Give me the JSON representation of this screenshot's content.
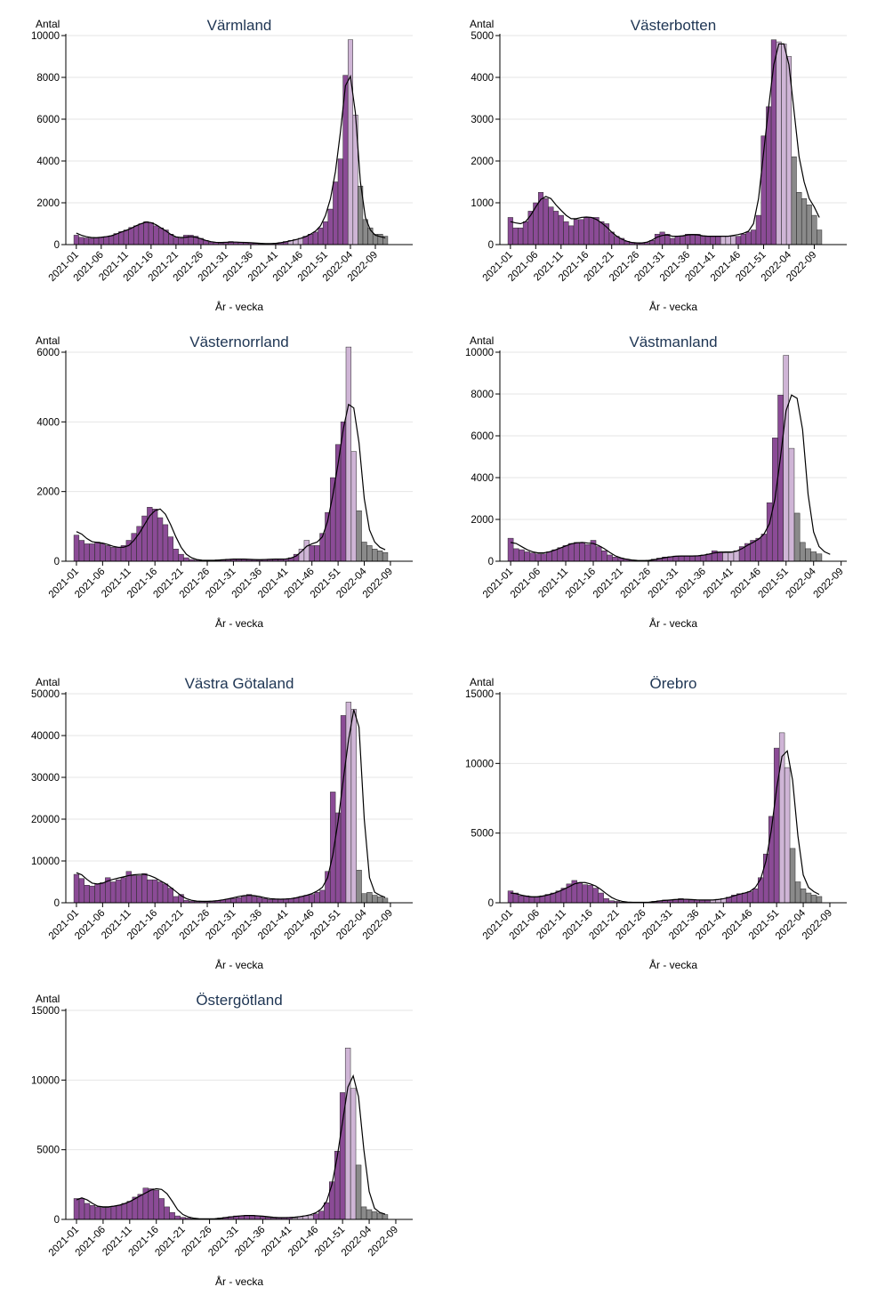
{
  "chart_data": [
    {
      "type": "bar",
      "title": "Värmland",
      "ylabel": "Antal",
      "xlabel": "År - vecka",
      "ylim": [
        0,
        10000
      ],
      "yticks": [
        0,
        2000,
        4000,
        6000,
        8000,
        10000
      ],
      "xticklabels": [
        "2021-01",
        "2021-06",
        "2021-11",
        "2021-16",
        "2021-21",
        "2021-26",
        "2021-31",
        "2021-36",
        "2021-41",
        "2021-46",
        "2021-51",
        "2022-04",
        "2022-09"
      ],
      "values": [
        450,
        350,
        320,
        300,
        320,
        350,
        380,
        420,
        530,
        620,
        700,
        820,
        900,
        1000,
        1100,
        1050,
        900,
        800,
        700,
        500,
        350,
        300,
        450,
        450,
        400,
        300,
        200,
        120,
        100,
        80,
        120,
        150,
        120,
        100,
        100,
        80,
        60,
        40,
        40,
        50,
        70,
        100,
        150,
        200,
        250,
        300,
        400,
        500,
        600,
        800,
        1100,
        1700,
        3000,
        4100,
        8100,
        9800,
        6200,
        2800,
        1200,
        800,
        500,
        500,
        400
      ],
      "curve": [
        550,
        450,
        380,
        340,
        330,
        350,
        380,
        420,
        500,
        600,
        680,
        780,
        900,
        1000,
        1080,
        1050,
        950,
        800,
        650,
        480,
        370,
        340,
        350,
        380,
        350,
        280,
        200,
        140,
        110,
        100,
        110,
        120,
        120,
        110,
        100,
        90,
        75,
        60,
        50,
        50,
        60,
        90,
        130,
        180,
        230,
        300,
        380,
        500,
        650,
        900,
        1400,
        2200,
        3500,
        5400,
        7600,
        8050,
        6300,
        3000,
        1300,
        700,
        450,
        380,
        320
      ],
      "grey_from": 57,
      "light_indices": [
        43,
        44,
        45,
        55,
        56
      ],
      "grid": true
    },
    {
      "type": "bar",
      "title": "Västerbotten",
      "ylabel": "Antal",
      "xlabel": "År - vecka",
      "ylim": [
        0,
        5000
      ],
      "yticks": [
        0,
        1000,
        2000,
        3000,
        4000,
        5000
      ],
      "xticklabels": [
        "2021-01",
        "2021-06",
        "2021-11",
        "2021-16",
        "2021-21",
        "2021-26",
        "2021-31",
        "2021-36",
        "2021-41",
        "2021-46",
        "2021-51",
        "2022-04",
        "2022-09"
      ],
      "values": [
        650,
        400,
        400,
        550,
        800,
        1000,
        1250,
        1100,
        900,
        800,
        700,
        550,
        450,
        600,
        600,
        650,
        650,
        650,
        550,
        500,
        300,
        200,
        150,
        80,
        50,
        40,
        40,
        50,
        100,
        250,
        300,
        250,
        150,
        200,
        200,
        250,
        250,
        250,
        200,
        200,
        200,
        200,
        200,
        200,
        200,
        200,
        250,
        300,
        350,
        700,
        2600,
        3300,
        4900,
        4850,
        4800,
        4500,
        2100,
        1250,
        1100,
        950,
        700,
        350
      ],
      "curve": [
        550,
        520,
        500,
        550,
        700,
        900,
        1080,
        1150,
        1100,
        950,
        820,
        700,
        620,
        620,
        650,
        660,
        650,
        600,
        520,
        420,
        300,
        200,
        130,
        80,
        50,
        40,
        40,
        60,
        110,
        180,
        220,
        230,
        200,
        200,
        210,
        230,
        240,
        230,
        210,
        200,
        200,
        200,
        200,
        200,
        220,
        240,
        270,
        320,
        500,
        1100,
        2200,
        3300,
        4300,
        4800,
        4800,
        4300,
        3200,
        2100,
        1500,
        1100,
        900,
        650
      ],
      "grey_from": 56,
      "light_indices": [
        42,
        43,
        44,
        53,
        54,
        55
      ],
      "grid": true
    },
    {
      "type": "bar",
      "title": "Västernorrland",
      "ylabel": "Antal",
      "xlabel": "År - vecka",
      "ylim": [
        0,
        6000
      ],
      "yticks": [
        0,
        2000,
        4000,
        6000
      ],
      "xticklabels": [
        "2021-01",
        "2021-06",
        "2021-11",
        "2021-16",
        "2021-21",
        "2021-26",
        "2021-31",
        "2021-36",
        "2021-41",
        "2021-46",
        "2021-51",
        "2022-04",
        "2022-09"
      ],
      "values": [
        750,
        600,
        500,
        500,
        550,
        500,
        450,
        400,
        400,
        450,
        600,
        800,
        1000,
        1300,
        1550,
        1500,
        1250,
        1050,
        700,
        350,
        200,
        100,
        50,
        30,
        20,
        20,
        30,
        40,
        50,
        60,
        60,
        60,
        60,
        50,
        40,
        40,
        50,
        60,
        60,
        60,
        60,
        100,
        200,
        350,
        600,
        450,
        450,
        800,
        1400,
        2400,
        3350,
        4000,
        6150,
        3150,
        1450,
        550,
        450,
        350,
        300,
        250
      ],
      "curve": [
        850,
        780,
        650,
        560,
        540,
        520,
        480,
        430,
        400,
        400,
        450,
        600,
        800,
        1050,
        1300,
        1450,
        1500,
        1350,
        1050,
        700,
        400,
        200,
        100,
        50,
        30,
        25,
        25,
        30,
        40,
        50,
        60,
        60,
        60,
        55,
        50,
        45,
        50,
        55,
        60,
        60,
        65,
        90,
        150,
        280,
        430,
        500,
        550,
        700,
        1150,
        1900,
        2800,
        3800,
        4500,
        4400,
        3400,
        1800,
        900,
        550,
        400,
        330
      ],
      "grey_from": 54,
      "light_indices": [
        43,
        44,
        52,
        53
      ],
      "grid": true
    },
    {
      "type": "bar",
      "title": "Västmanland",
      "ylabel": "Antal",
      "xlabel": "År - vecka",
      "ylim": [
        0,
        10000
      ],
      "yticks": [
        0,
        2000,
        4000,
        6000,
        8000,
        10000
      ],
      "xticklabels": [
        "2021-01",
        "2021-06",
        "2021-11",
        "2021-16",
        "2021-21",
        "2021-26",
        "2021-31",
        "2021-36",
        "2021-41",
        "2021-46",
        "2021-51",
        "2022-04",
        "2022-09"
      ],
      "values": [
        1100,
        600,
        550,
        450,
        400,
        350,
        350,
        450,
        550,
        650,
        750,
        850,
        900,
        900,
        800,
        1000,
        700,
        500,
        300,
        200,
        150,
        100,
        50,
        30,
        30,
        50,
        100,
        150,
        200,
        220,
        250,
        250,
        250,
        250,
        250,
        300,
        350,
        500,
        450,
        400,
        400,
        500,
        700,
        850,
        1000,
        1100,
        1300,
        2800,
        5900,
        7950,
        9850,
        5400,
        2300,
        900,
        600,
        450,
        350
      ],
      "curve": [
        900,
        850,
        700,
        550,
        450,
        400,
        400,
        450,
        530,
        630,
        730,
        830,
        880,
        900,
        870,
        850,
        750,
        600,
        420,
        260,
        160,
        100,
        60,
        40,
        35,
        40,
        70,
        120,
        170,
        210,
        240,
        250,
        250,
        250,
        260,
        290,
        340,
        400,
        430,
        440,
        440,
        480,
        600,
        760,
        900,
        1050,
        1300,
        1800,
        3000,
        5000,
        7200,
        7950,
        7800,
        6300,
        3200,
        1400,
        700,
        450,
        330
      ],
      "grey_from": 52,
      "light_indices": [
        39,
        40,
        41,
        50,
        51
      ],
      "grid": true
    },
    {
      "type": "bar",
      "title": "Västra Götaland",
      "ylabel": "Antal",
      "xlabel": "År - vecka",
      "ylim": [
        0,
        50000
      ],
      "yticks": [
        0,
        10000,
        20000,
        30000,
        40000,
        50000
      ],
      "xticklabels": [
        "2021-01",
        "2021-06",
        "2021-11",
        "2021-16",
        "2021-21",
        "2021-26",
        "2021-31",
        "2021-36",
        "2021-41",
        "2021-46",
        "2021-51",
        "2022-04",
        "2022-09"
      ],
      "values": [
        6800,
        5800,
        4200,
        4000,
        4500,
        4800,
        6000,
        5000,
        5500,
        6000,
        7500,
        6500,
        6500,
        7000,
        5500,
        5500,
        5000,
        4500,
        3500,
        1500,
        2000,
        600,
        400,
        300,
        300,
        350,
        400,
        500,
        700,
        900,
        1000,
        1200,
        1500,
        2000,
        1500,
        1300,
        1000,
        800,
        800,
        800,
        900,
        1000,
        1200,
        1500,
        1800,
        2000,
        2500,
        3000,
        7500,
        26500,
        21500,
        44800,
        48000,
        46300,
        7800,
        2200,
        2500,
        1800,
        1400,
        1100
      ],
      "curve": [
        7200,
        6700,
        5600,
        4700,
        4500,
        4700,
        5200,
        5600,
        5900,
        6200,
        6500,
        6700,
        6800,
        6800,
        6500,
        6000,
        5300,
        4600,
        3700,
        2700,
        1700,
        1000,
        600,
        400,
        350,
        350,
        400,
        500,
        700,
        950,
        1200,
        1500,
        1700,
        1800,
        1700,
        1500,
        1200,
        1000,
        900,
        850,
        900,
        1000,
        1200,
        1500,
        1800,
        2200,
        2800,
        3700,
        6000,
        11500,
        19500,
        29500,
        39000,
        46200,
        42000,
        20000,
        6000,
        2500,
        1800,
        1300
      ],
      "grey_from": 54,
      "light_indices": [
        52,
        53
      ],
      "grid": true
    },
    {
      "type": "bar",
      "title": "Örebro",
      "ylabel": "Antal",
      "xlabel": "År - vecka",
      "ylim": [
        0,
        15000
      ],
      "yticks": [
        0,
        5000,
        10000,
        15000
      ],
      "xticklabels": [
        "2021-01",
        "2021-06",
        "2021-11",
        "2021-16",
        "2021-21",
        "2021-26",
        "2021-31",
        "2021-36",
        "2021-41",
        "2021-46",
        "2021-51",
        "2022-04",
        "2022-09"
      ],
      "values": [
        850,
        700,
        500,
        500,
        400,
        400,
        500,
        600,
        700,
        850,
        1050,
        1350,
        1600,
        1450,
        1300,
        1250,
        1050,
        700,
        300,
        150,
        100,
        50,
        30,
        30,
        30,
        30,
        50,
        100,
        150,
        200,
        200,
        250,
        300,
        250,
        200,
        200,
        200,
        200,
        200,
        250,
        300,
        400,
        550,
        650,
        700,
        800,
        1000,
        1800,
        3500,
        6200,
        11100,
        12200,
        9700,
        3900,
        1500,
        1000,
        700,
        550,
        450
      ],
      "curve": [
        700,
        650,
        550,
        470,
        430,
        430,
        480,
        560,
        660,
        800,
        970,
        1150,
        1350,
        1450,
        1450,
        1350,
        1200,
        950,
        650,
        380,
        200,
        100,
        50,
        35,
        30,
        30,
        45,
        80,
        130,
        170,
        200,
        230,
        250,
        250,
        230,
        210,
        200,
        200,
        200,
        230,
        290,
        380,
        500,
        610,
        700,
        820,
        1100,
        1700,
        3000,
        5200,
        8200,
        10500,
        10900,
        8800,
        4800,
        2000,
        1100,
        800,
        600
      ],
      "grey_from": 53,
      "light_indices": [
        38,
        39,
        40,
        51,
        52
      ],
      "grid": true
    },
    {
      "type": "bar",
      "title": "Östergötland",
      "ylabel": "Antal",
      "xlabel": "År - vecka",
      "ylim": [
        0,
        15000
      ],
      "yticks": [
        0,
        5000,
        10000,
        15000
      ],
      "xticklabels": [
        "2021-01",
        "2021-06",
        "2021-11",
        "2021-16",
        "2021-21",
        "2021-26",
        "2021-31",
        "2021-36",
        "2021-41",
        "2021-46",
        "2021-51",
        "2022-04",
        "2022-09"
      ],
      "values": [
        1500,
        1500,
        1150,
        1000,
        900,
        850,
        850,
        950,
        1000,
        1150,
        1300,
        1600,
        1800,
        2250,
        2200,
        2100,
        1500,
        900,
        500,
        250,
        150,
        100,
        50,
        30,
        30,
        30,
        50,
        100,
        150,
        200,
        250,
        250,
        300,
        300,
        250,
        200,
        150,
        100,
        100,
        100,
        150,
        100,
        200,
        250,
        300,
        400,
        600,
        1200,
        2700,
        4900,
        9100,
        12300,
        9400,
        3900,
        900,
        700,
        550,
        450,
        350
      ],
      "curve": [
        1400,
        1550,
        1400,
        1150,
        950,
        900,
        900,
        950,
        1020,
        1130,
        1280,
        1480,
        1700,
        1900,
        2100,
        2200,
        2150,
        1850,
        1300,
        700,
        350,
        180,
        90,
        50,
        40,
        40,
        50,
        80,
        130,
        180,
        220,
        260,
        280,
        280,
        260,
        230,
        190,
        150,
        130,
        130,
        140,
        160,
        200,
        260,
        340,
        480,
        750,
        1300,
        2500,
        4500,
        7000,
        9500,
        10300,
        8800,
        5000,
        2000,
        800,
        500,
        380
      ],
      "grey_from": 53,
      "light_indices": [
        41,
        42,
        43,
        44,
        51,
        52
      ],
      "grid": true
    }
  ],
  "colors": {
    "purple": "#8b4b96",
    "light_purple": "#cfb5d6",
    "grey": "#8a8a8a",
    "outline": "#2b2b2b",
    "curve": "#000000",
    "title": "#1e3553",
    "grid": "#e6e6e6"
  }
}
